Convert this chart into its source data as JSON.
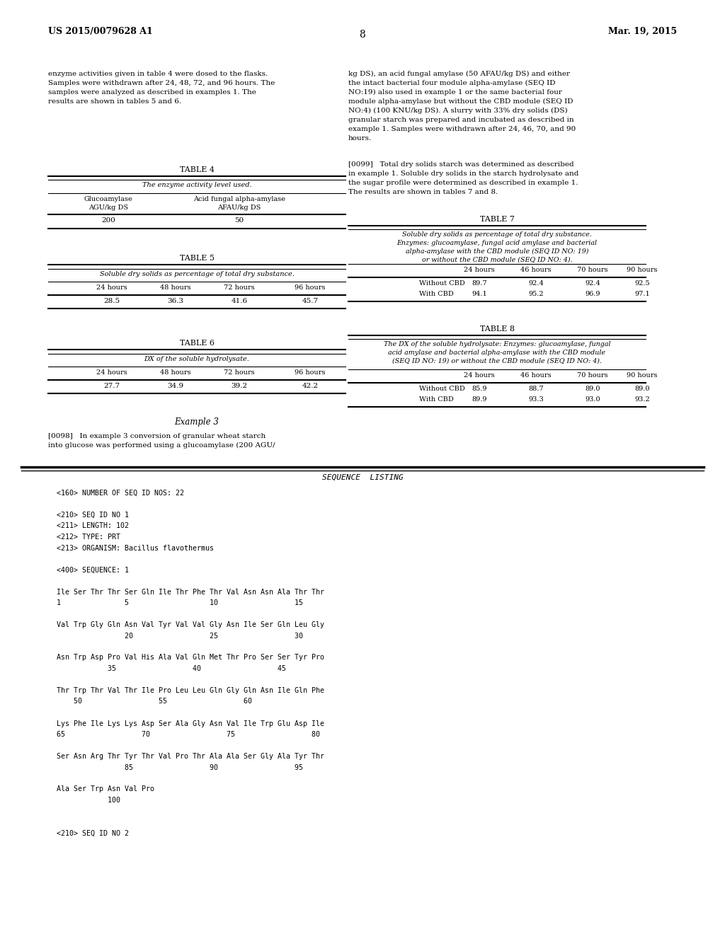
{
  "background_color": "#ffffff",
  "header_left": "US 2015/0079628 A1",
  "header_right": "Mar. 19, 2015",
  "page_number": "8",
  "para1_left": "enzyme activities given in table 4 were dosed to the flasks.\nSamples were withdrawn after 24, 48, 72, and 96 hours. The\nsamples were analyzed as described in examples 1. The\nresults are shown in tables 5 and 6.",
  "para1_right": "kg DS), an acid fungal amylase (50 AFAU/kg DS) and either\nthe intact bacterial four module alpha-amylase (SEQ ID\nNO:19) also used in example 1 or the same bacterial four\nmodule alpha-amylase but without the CBD module (SEQ ID\nNO:4) (100 KNU/kg DS). A slurry with 33% dry solids (DS)\ngranular starch was prepared and incubated as described in\nexample 1. Samples were withdrawn after 24, 46, 70, and 90\nhours.",
  "para2_right": "[0099]   Total dry solids starch was determined as described\nin example 1. Soluble dry solids in the starch hydrolysate and\nthe sugar profile were determined as described in example 1.\nThe results are shown in tables 7 and 8.",
  "table4_title": "TABLE 4",
  "table4_subtitle": "The enzyme activity level used.",
  "table4_col1_header": "Glucoamylase\nAGU/kg DS",
  "table4_col2_header": "Acid fungal alpha-amylase\nAFAU/kg DS",
  "table4_val1": "200",
  "table4_val2": "50",
  "table5_title": "TABLE 5",
  "table5_subtitle": "Soluble dry solids as percentage of total dry substance.",
  "table5_hours": [
    "24 hours",
    "48 hours",
    "72 hours",
    "96 hours"
  ],
  "table5_data": [
    "28.5",
    "36.3",
    "41.6",
    "45.7"
  ],
  "table6_title": "TABLE 6",
  "table6_subtitle": "DX of the soluble hydrolysate.",
  "table6_hours": [
    "24 hours",
    "48 hours",
    "72 hours",
    "96 hours"
  ],
  "table6_data": [
    "27.7",
    "34.9",
    "39.2",
    "42.2"
  ],
  "table7_title": "TABLE 7",
  "table7_subtitle": "Soluble dry solids as percentage of total dry substance.\nEnzymes: glucoamylase, fungal acid amylase and bacterial\nalpha-amylase with the CBD module (SEQ ID NO: 19)\nor without the CBD module (SEQ ID NO: 4).",
  "table7_hours": [
    "24 hours",
    "46 hours",
    "70 hours",
    "90 hours"
  ],
  "table7_row1_label": "Without CBD",
  "table7_row1_data": [
    "89.7",
    "92.4",
    "92.4",
    "92.5"
  ],
  "table7_row2_label": "With CBD",
  "table7_row2_data": [
    "94.1",
    "95.2",
    "96.9",
    "97.1"
  ],
  "table8_title": "TABLE 8",
  "table8_subtitle": "The DX of the soluble hydrolysate: Enzymes: glucoamylase, fungal\nacid amylase and bacterial alpha-amylase with the CBD module\n(SEQ ID NO: 19) or without the CBD module (SEQ ID NO: 4).",
  "table8_hours": [
    "24 hours",
    "46 hours",
    "70 hours",
    "90 hours"
  ],
  "table8_row1_label": "Without CBD",
  "table8_row1_data": [
    "85.9",
    "88.7",
    "89.0",
    "89.0"
  ],
  "table8_row2_label": "With CBD",
  "table8_row2_data": [
    "89.9",
    "93.3",
    "93.0",
    "93.2"
  ],
  "example3_title": "Example 3",
  "example3_para": "[0098]   In example 3 conversion of granular wheat starch\ninto glucose was performed using a glucoamylase (200 AGU/",
  "seq_listing_title": "SEQUENCE  LISTING",
  "seq_lines": [
    "<160> NUMBER OF SEQ ID NOS: 22",
    "",
    "<210> SEQ ID NO 1",
    "<211> LENGTH: 102",
    "<212> TYPE: PRT",
    "<213> ORGANISM: Bacillus flavothermus",
    "",
    "<400> SEQUENCE: 1",
    "",
    "Ile Ser Thr Thr Ser Gln Ile Thr Phe Thr Val Asn Asn Ala Thr Thr",
    "1               5                   10                  15",
    "",
    "Val Trp Gly Gln Asn Val Tyr Val Val Gly Asn Ile Ser Gln Leu Gly",
    "                20                  25                  30",
    "",
    "Asn Trp Asp Pro Val His Ala Val Gln Met Thr Pro Ser Ser Tyr Pro",
    "            35                  40                  45",
    "",
    "Thr Trp Thr Val Thr Ile Pro Leu Leu Gln Gly Gln Asn Ile Gln Phe",
    "    50                  55                  60",
    "",
    "Lys Phe Ile Lys Lys Asp Ser Ala Gly Asn Val Ile Trp Glu Asp Ile",
    "65                  70                  75                  80",
    "",
    "Ser Asn Arg Thr Tyr Thr Val Pro Thr Ala Ala Ser Gly Ala Tyr Thr",
    "                85                  90                  95",
    "",
    "Ala Ser Trp Asn Val Pro",
    "            100",
    "",
    "",
    "<210> SEQ ID NO 2"
  ]
}
